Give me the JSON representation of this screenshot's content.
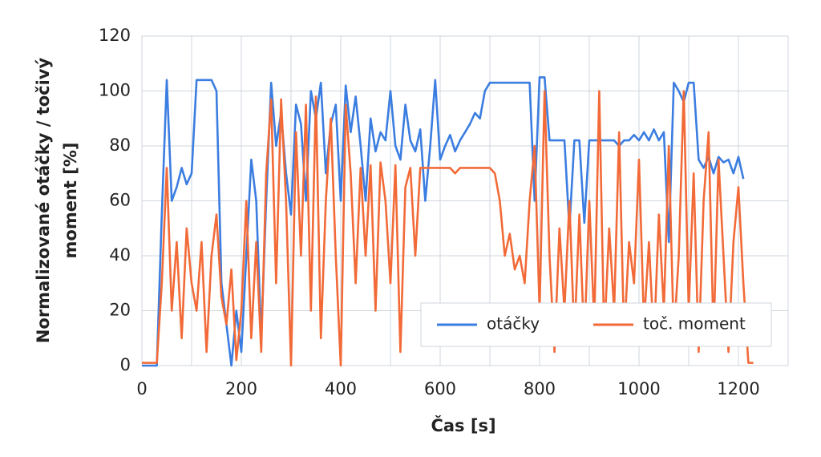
{
  "chart_data": {
    "type": "line",
    "xlabel": "Čas [s]",
    "ylabel": [
      "Normalizované otáčky / točivý",
      "moment [%]"
    ],
    "xlim": [
      0,
      1300
    ],
    "xticks": [
      0,
      200,
      400,
      600,
      800,
      1000,
      1200
    ],
    "xgrid": [
      0,
      100,
      200,
      300,
      400,
      500,
      600,
      700,
      800,
      900,
      1000,
      1100,
      1200,
      1300
    ],
    "ylim": [
      0,
      120
    ],
    "yticks": [
      0,
      20,
      40,
      60,
      80,
      100,
      120
    ],
    "grid": true,
    "legend": "lower right",
    "series": [
      {
        "name": "otáčky",
        "color": "#3b7de0",
        "x": [
          0,
          10,
          20,
          30,
          40,
          50,
          60,
          70,
          80,
          90,
          100,
          110,
          120,
          130,
          140,
          150,
          160,
          170,
          180,
          190,
          200,
          210,
          220,
          230,
          240,
          250,
          260,
          270,
          280,
          290,
          300,
          310,
          320,
          330,
          340,
          350,
          360,
          370,
          380,
          390,
          400,
          410,
          420,
          430,
          440,
          450,
          460,
          470,
          480,
          490,
          500,
          510,
          520,
          530,
          540,
          550,
          560,
          570,
          580,
          590,
          600,
          610,
          620,
          630,
          640,
          650,
          660,
          670,
          680,
          690,
          700,
          710,
          720,
          730,
          740,
          750,
          760,
          770,
          780,
          790,
          800,
          810,
          820,
          830,
          840,
          850,
          860,
          870,
          880,
          890,
          900,
          910,
          920,
          930,
          940,
          950,
          960,
          970,
          980,
          990,
          1000,
          1010,
          1020,
          1030,
          1040,
          1050,
          1060,
          1070,
          1080,
          1090,
          1100,
          1110,
          1120,
          1130,
          1140,
          1150,
          1160,
          1170,
          1180,
          1190,
          1200,
          1210
        ],
        "values": [
          0,
          0,
          0,
          0,
          55,
          104,
          60,
          65,
          72,
          66,
          70,
          104,
          104,
          104,
          104,
          100,
          30,
          15,
          0,
          20,
          5,
          40,
          75,
          60,
          10,
          60,
          103,
          80,
          92,
          70,
          55,
          95,
          88,
          60,
          100,
          90,
          103,
          70,
          88,
          95,
          60,
          102,
          85,
          98,
          80,
          60,
          90,
          78,
          85,
          82,
          100,
          80,
          75,
          95,
          82,
          78,
          86,
          60,
          80,
          104,
          75,
          80,
          84,
          78,
          82,
          85,
          88,
          92,
          90,
          100,
          103,
          103,
          103,
          103,
          103,
          103,
          103,
          103,
          103,
          60,
          105,
          105,
          82,
          82,
          82,
          82,
          50,
          82,
          82,
          52,
          82,
          82,
          82,
          82,
          82,
          82,
          80,
          82,
          82,
          84,
          82,
          85,
          82,
          86,
          82,
          85,
          45,
          103,
          100,
          96,
          103,
          103,
          75,
          72,
          76,
          70,
          76,
          74,
          75,
          70,
          76,
          68
        ]
      },
      {
        "name": "toč. moment",
        "color": "#f26a38",
        "x": [
          0,
          10,
          20,
          30,
          40,
          50,
          60,
          70,
          80,
          90,
          100,
          110,
          120,
          130,
          140,
          150,
          160,
          170,
          180,
          190,
          200,
          210,
          220,
          230,
          240,
          250,
          260,
          270,
          280,
          290,
          300,
          310,
          320,
          330,
          340,
          350,
          360,
          370,
          380,
          390,
          400,
          410,
          420,
          430,
          440,
          450,
          460,
          470,
          480,
          490,
          500,
          510,
          520,
          530,
          540,
          550,
          560,
          570,
          580,
          590,
          600,
          610,
          620,
          630,
          640,
          650,
          660,
          670,
          680,
          690,
          700,
          710,
          720,
          730,
          740,
          750,
          760,
          770,
          780,
          790,
          800,
          810,
          820,
          830,
          840,
          850,
          860,
          870,
          880,
          890,
          900,
          910,
          920,
          930,
          940,
          950,
          960,
          970,
          980,
          990,
          1000,
          1010,
          1020,
          1030,
          1040,
          1050,
          1060,
          1070,
          1080,
          1090,
          1100,
          1110,
          1120,
          1130,
          1140,
          1150,
          1160,
          1170,
          1180,
          1190,
          1200,
          1210,
          1220,
          1230
        ],
        "values": [
          1,
          1,
          1,
          1,
          30,
          72,
          20,
          45,
          10,
          50,
          30,
          20,
          45,
          5,
          40,
          55,
          25,
          15,
          35,
          2,
          20,
          60,
          10,
          45,
          5,
          70,
          97,
          30,
          97,
          60,
          0,
          85,
          40,
          95,
          20,
          98,
          10,
          60,
          90,
          40,
          0,
          95,
          70,
          30,
          72,
          40,
          73,
          20,
          74,
          60,
          30,
          73,
          5,
          65,
          72,
          40,
          72,
          72,
          72,
          72,
          72,
          72,
          72,
          70,
          72,
          72,
          72,
          72,
          72,
          72,
          72,
          70,
          60,
          40,
          48,
          35,
          40,
          30,
          60,
          80,
          20,
          100,
          40,
          5,
          50,
          20,
          60,
          10,
          55,
          8,
          60,
          15,
          100,
          10,
          50,
          20,
          85,
          10,
          45,
          30,
          75,
          15,
          45,
          8,
          55,
          20,
          80,
          10,
          40,
          100,
          20,
          70,
          5,
          60,
          85,
          10,
          75,
          40,
          5,
          45,
          65,
          30,
          1,
          1
        ]
      }
    ]
  }
}
